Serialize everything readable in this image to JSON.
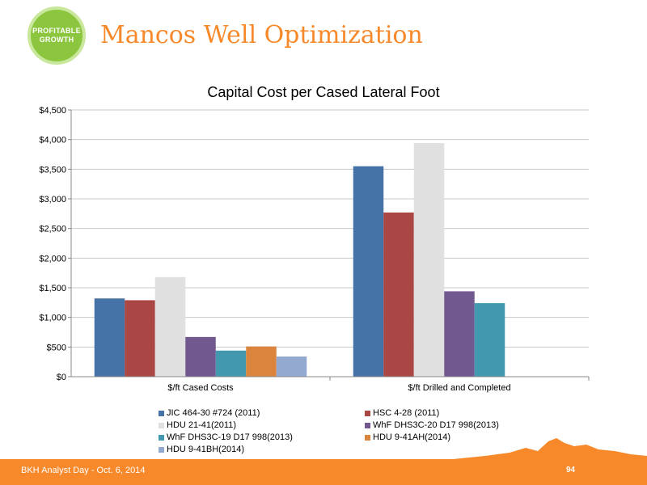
{
  "header": {
    "badge_line1": "PROFITABLE",
    "badge_line2": "GROWTH",
    "title": "Mancos Well Optimization"
  },
  "footer": {
    "text": "BKH Analyst Day - Oct. 6, 2014",
    "page_number": "94"
  },
  "colors": {
    "accent": "#f7892b",
    "badge": "#8cc63f"
  },
  "chart_data": {
    "type": "bar",
    "title": "Capital Cost per Cased Lateral Foot",
    "categories": [
      "$/ft Cased Costs",
      "$/ft Drilled and Completed"
    ],
    "ylim": [
      0,
      4500
    ],
    "yticks": [
      "$0",
      "$500",
      "$1,000",
      "$1,500",
      "$2,000",
      "$2,500",
      "$3,000",
      "$3,500",
      "$4,000",
      "$4,500"
    ],
    "grid": true,
    "legend_position": "bottom",
    "series": [
      {
        "name": "JIC 464-30 #724 (2011)",
        "color": "#4572a7",
        "values": [
          1320,
          3550
        ]
      },
      {
        "name": "HSC 4-28 (2011)",
        "color": "#aa4643",
        "values": [
          1290,
          2770
        ]
      },
      {
        "name": "HDU 21-41(2011)",
        "color": "#e0e0e0",
        "values": [
          1680,
          3940
        ]
      },
      {
        "name": "WhF DHS3C-20 D17 998(2013)",
        "color": "#71588f",
        "values": [
          670,
          1440
        ]
      },
      {
        "name": "WhF DHS3C-19 D17 998(2013)",
        "color": "#4198af",
        "values": [
          440,
          1240
        ]
      },
      {
        "name": "HDU 9-41AH(2014)",
        "color": "#db843d",
        "values": [
          510,
          null
        ]
      },
      {
        "name": "HDU 9-41BH(2014)",
        "color": "#93a9cf",
        "values": [
          340,
          null
        ]
      }
    ]
  }
}
